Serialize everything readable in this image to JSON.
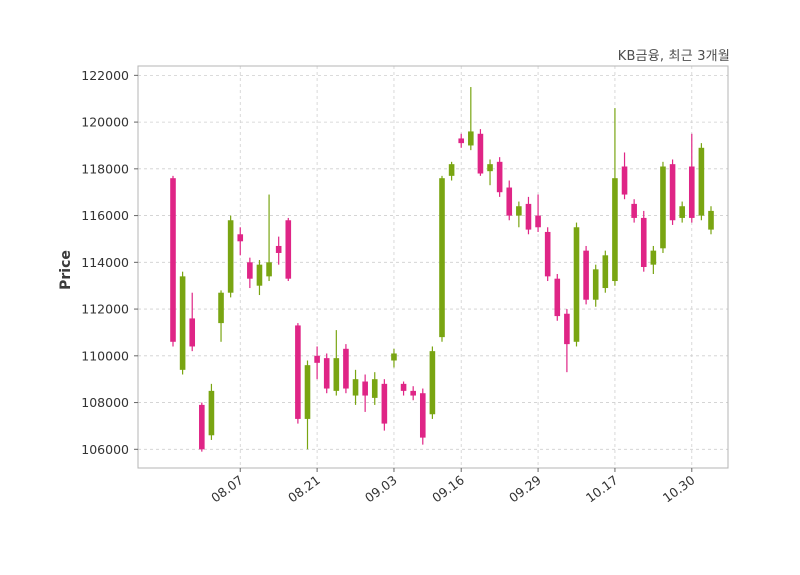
{
  "chart_data": {
    "type": "candlestick",
    "title": "KB금융, 최근 3개월",
    "series_name": "KB금융",
    "period": "최근 3개월",
    "ylabel": "Price",
    "ylim": [
      105200,
      122400
    ],
    "yticks": [
      106000,
      108000,
      110000,
      112000,
      114000,
      116000,
      118000,
      120000,
      122000
    ],
    "xticks": [
      {
        "index": 7,
        "label": "08.07"
      },
      {
        "index": 15,
        "label": "08.21"
      },
      {
        "index": 23,
        "label": "09.03"
      },
      {
        "index": 30,
        "label": "09.16"
      },
      {
        "index": 38,
        "label": "09.29"
      },
      {
        "index": 46,
        "label": "10.17"
      },
      {
        "index": 54,
        "label": "10.30"
      }
    ],
    "up_color": "#79a512",
    "down_color": "#df2586",
    "grid": {
      "show": true,
      "style": "dashed",
      "color": "#cfcfcf"
    },
    "candles": [
      [
        117600,
        117700,
        110400,
        110600
      ],
      [
        109400,
        113600,
        109200,
        113400
      ],
      [
        111600,
        112700,
        110200,
        110400
      ],
      [
        107900,
        108000,
        105900,
        106000
      ],
      [
        106600,
        108800,
        106400,
        108500
      ],
      [
        111400,
        112800,
        110600,
        112700
      ],
      [
        112700,
        116000,
        112500,
        115800
      ],
      [
        115200,
        115500,
        114300,
        114900
      ],
      [
        114000,
        114200,
        112900,
        113300
      ],
      [
        113000,
        114100,
        112600,
        113900
      ],
      [
        113400,
        116900,
        113200,
        114000
      ],
      [
        114700,
        115100,
        113900,
        114400
      ],
      [
        115800,
        115900,
        113200,
        113300
      ],
      [
        111300,
        111400,
        107100,
        107300
      ],
      [
        107300,
        109800,
        106000,
        109600
      ],
      [
        110000,
        110400,
        109000,
        109700
      ],
      [
        109900,
        110100,
        108400,
        108600
      ],
      [
        108500,
        111100,
        108300,
        109900
      ],
      [
        110300,
        110500,
        108400,
        108600
      ],
      [
        108300,
        109400,
        107900,
        109000
      ],
      [
        108900,
        109200,
        107600,
        108300
      ],
      [
        108200,
        109300,
        107900,
        109000
      ],
      [
        108800,
        109000,
        106800,
        107100
      ],
      [
        109800,
        110300,
        109500,
        110100
      ],
      [
        108800,
        108900,
        108300,
        108500
      ],
      [
        108500,
        108700,
        108100,
        108300
      ],
      [
        108400,
        108600,
        106200,
        106500
      ],
      [
        107500,
        110400,
        107300,
        110200
      ],
      [
        110800,
        117700,
        110600,
        117600
      ],
      [
        117700,
        118300,
        117500,
        118200
      ],
      [
        119300,
        119500,
        118900,
        119100
      ],
      [
        119000,
        121500,
        118800,
        119600
      ],
      [
        119500,
        119700,
        117700,
        117800
      ],
      [
        117900,
        118400,
        117300,
        118200
      ],
      [
        118300,
        118500,
        116800,
        117000
      ],
      [
        117200,
        117500,
        115800,
        116000
      ],
      [
        116000,
        116600,
        115500,
        116400
      ],
      [
        116500,
        116800,
        115200,
        115400
      ],
      [
        116000,
        116900,
        115300,
        115500
      ],
      [
        115300,
        115500,
        113200,
        113400
      ],
      [
        113300,
        113500,
        111500,
        111700
      ],
      [
        111800,
        112000,
        109300,
        110500
      ],
      [
        110600,
        115700,
        110400,
        115500
      ],
      [
        114500,
        114700,
        112200,
        112400
      ],
      [
        112400,
        113900,
        112100,
        113700
      ],
      [
        112900,
        114500,
        112700,
        114300
      ],
      [
        113200,
        120600,
        113000,
        117600
      ],
      [
        118100,
        118700,
        116700,
        116900
      ],
      [
        116500,
        116700,
        115700,
        115900
      ],
      [
        115900,
        116200,
        113600,
        113800
      ],
      [
        113900,
        114700,
        113500,
        114500
      ],
      [
        114600,
        118300,
        114400,
        118100
      ],
      [
        118200,
        118400,
        115600,
        115800
      ],
      [
        115900,
        116600,
        115700,
        116400
      ],
      [
        118100,
        119500,
        115700,
        115900
      ],
      [
        116000,
        119100,
        115800,
        118900
      ],
      [
        115400,
        116400,
        115200,
        116200
      ]
    ]
  }
}
